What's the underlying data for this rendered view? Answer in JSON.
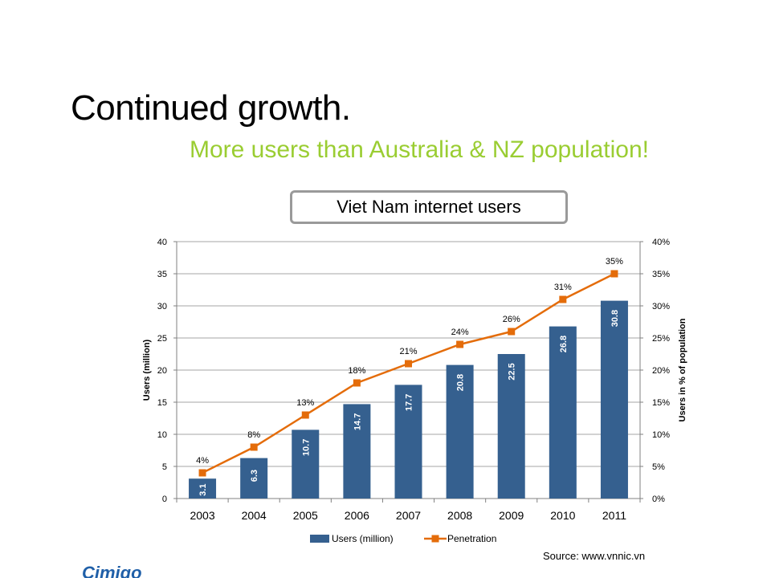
{
  "slide": {
    "title": "Continued growth.",
    "subtitle": "More users than Australia & NZ population!",
    "source": "Source: www.vnnic.vn",
    "logo_text": "Cimigo"
  },
  "colors": {
    "bar": "#35608f",
    "line": "#e46c0a",
    "subtitle": "#9acd32",
    "grid": "#a6a6a6"
  },
  "chart_data": {
    "type": "bar",
    "title": "Viet Nam internet users",
    "categories": [
      "2003",
      "2004",
      "2005",
      "2006",
      "2007",
      "2008",
      "2009",
      "2010",
      "2011"
    ],
    "series": [
      {
        "name": "Users (million)",
        "kind": "bar",
        "axis": "left",
        "values": [
          3.1,
          6.3,
          10.7,
          14.7,
          17.7,
          20.8,
          22.5,
          26.8,
          30.8
        ],
        "labels": [
          "3.1",
          "6.3",
          "10.7",
          "14.7",
          "17.7",
          "20.8",
          "22.5",
          "26.8",
          "30.8"
        ]
      },
      {
        "name": "Penetration",
        "kind": "line",
        "axis": "right",
        "values": [
          4,
          8,
          13,
          18,
          21,
          24,
          26,
          31,
          35
        ],
        "labels": [
          "4%",
          "8%",
          "13%",
          "18%",
          "21%",
          "24%",
          "26%",
          "31%",
          "35%"
        ]
      }
    ],
    "ylabel": "Users (million)",
    "y2label": "Users in % of population",
    "ylim": [
      0,
      40
    ],
    "y2lim": [
      0,
      40
    ],
    "yticks": [
      "0",
      "5",
      "10",
      "15",
      "20",
      "25",
      "30",
      "35",
      "40"
    ],
    "y2ticks": [
      "0%",
      "5%",
      "10%",
      "15%",
      "20%",
      "25%",
      "30%",
      "35%",
      "40%"
    ],
    "legend": [
      "Users (million)",
      "Penetration"
    ],
    "legend_position": "bottom",
    "grid": true
  }
}
